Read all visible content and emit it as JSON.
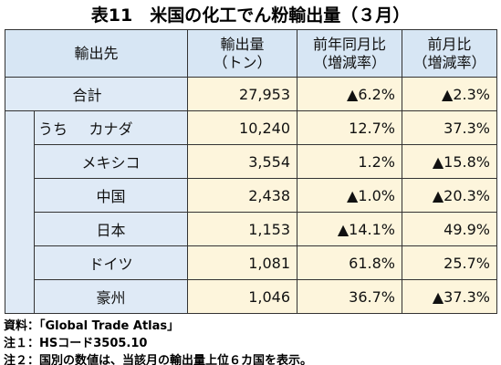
{
  "header": {
    "title": "表11　米国の化工でん粉輸出量（３月）"
  },
  "table": {
    "columns": [
      [
        "輸出先"
      ],
      [
        "輸出量",
        "（トン）"
      ],
      [
        "前年同月比",
        "（増減率）"
      ],
      [
        "前月比",
        "（増減率）"
      ]
    ],
    "total": {
      "label": "合計",
      "cells": [
        "27,953",
        "▲6.2%",
        "▲2.3%"
      ]
    },
    "breakdown_label": "うち",
    "rows": [
      {
        "label": "カナダ",
        "cells": [
          "10,240",
          "12.7%",
          "37.3%"
        ]
      },
      {
        "label": "メキシコ",
        "cells": [
          "3,554",
          "1.2%",
          "▲15.8%"
        ]
      },
      {
        "label": "中国",
        "cells": [
          "2,438",
          "▲1.0%",
          "▲20.3%"
        ]
      },
      {
        "label": "日本",
        "cells": [
          "1,153",
          "▲14.1%",
          "49.9%"
        ]
      },
      {
        "label": "ドイツ",
        "cells": [
          "1,081",
          "61.8%",
          "25.7%"
        ]
      },
      {
        "label": "豪州",
        "cells": [
          "1,046",
          "36.7%",
          "▲37.3%"
        ]
      }
    ]
  },
  "notes": [
    "資料：「Global Trade Atlas」",
    "注１：HSコード3505.10",
    "注２：国別の数値は、当該月の輸出量上位６カ国を表示。"
  ]
}
